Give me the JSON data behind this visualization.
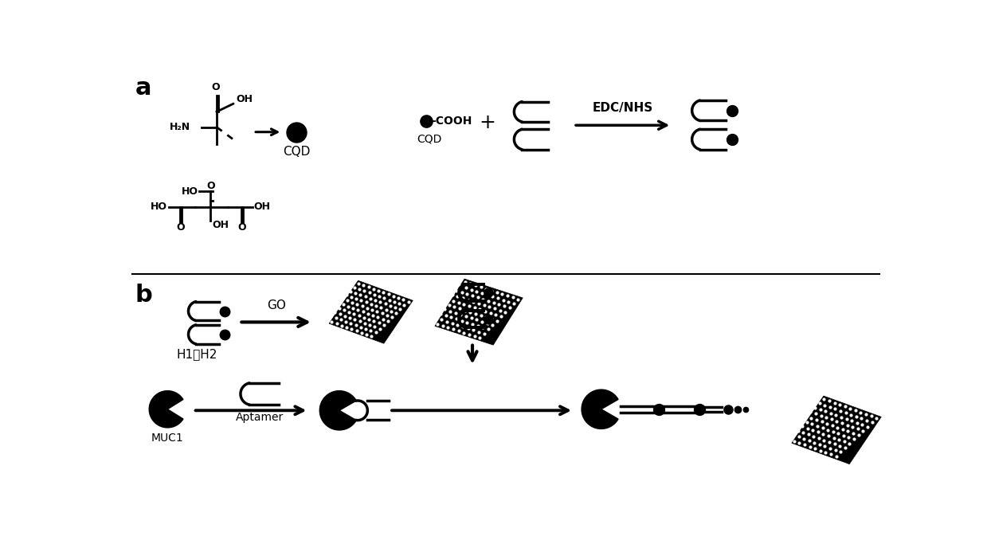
{
  "bg_color": "#ffffff",
  "line_color": "#000000",
  "label_a": "a",
  "label_b": "b",
  "label_cqd": "CQD",
  "label_edc_nhs": "EDC/NHS",
  "label_go": "GO",
  "label_h1h2": "H1、H2",
  "label_muc1": "MUC1",
  "label_aptamer": "Aptamer"
}
